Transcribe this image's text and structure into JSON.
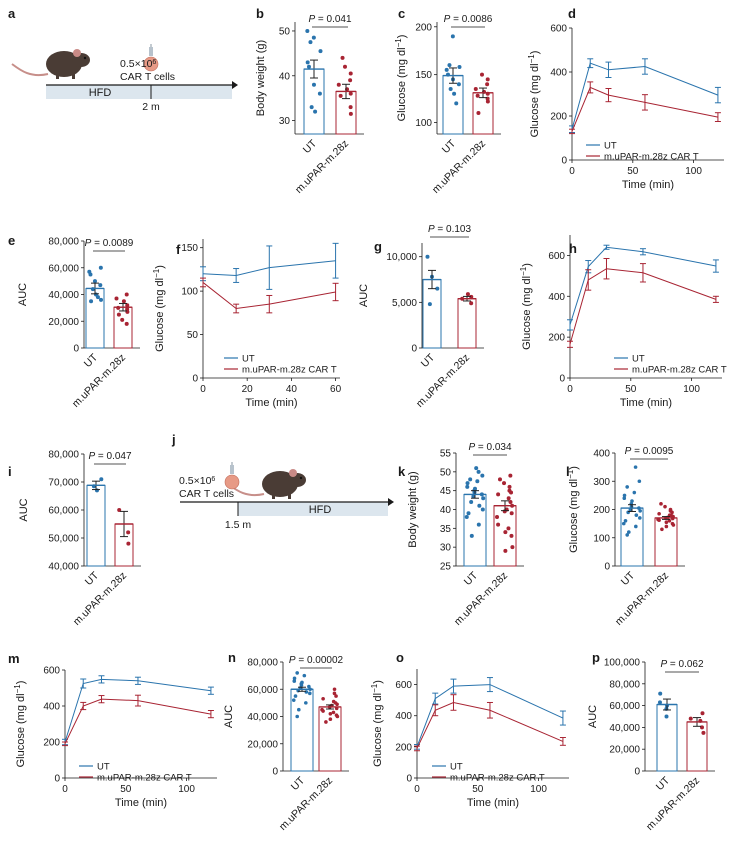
{
  "colors": {
    "ut": "#2a74ad",
    "car": "#a82433",
    "car_light": "#c9414f",
    "axis": "#1a1a1a",
    "hfd_bar": "#dce6ee",
    "mouse": "#4a3c35",
    "mouse_ear": "#c98a86",
    "cell": "#e79a86"
  },
  "chart_data": [
    {
      "panel": "a",
      "type": "schematic",
      "dose_label": "0.5×10",
      "dose_exponent": "6",
      "cells_label": "CAR T cells",
      "diet_label": "HFD",
      "time_label": "2 m"
    },
    {
      "panel": "b",
      "type": "bar",
      "categories": [
        "UT",
        "m.uPAR-m.28z"
      ],
      "values": [
        41.5,
        36.5
      ],
      "errors": [
        2.0,
        1.6
      ],
      "points": [
        [
          50,
          48.5,
          47.5,
          45.5,
          43,
          42,
          38,
          36,
          33,
          32
        ],
        [
          44,
          42,
          40.5,
          39,
          38,
          37,
          36,
          35.5,
          33,
          31.5
        ]
      ],
      "ylabel": "Body weight (g)",
      "ylim": [
        27,
        52
      ],
      "yticks": [
        "30",
        "40",
        "50"
      ],
      "yticks_values": [
        30,
        40,
        50
      ],
      "pvalue": "P = 0.041"
    },
    {
      "panel": "c",
      "type": "bar",
      "categories": [
        "UT",
        "m.uPAR-m.28z"
      ],
      "values": [
        149,
        131
      ],
      "errors": [
        8,
        5
      ],
      "points": [
        [
          190,
          160,
          158,
          155,
          150,
          145,
          140,
          135,
          130,
          120
        ],
        [
          150,
          145,
          140,
          135,
          132,
          130,
          128,
          125,
          122,
          110
        ]
      ],
      "ylabel": "Glucose (mg dl−1)",
      "ylim": [
        88,
        205
      ],
      "yticks": [
        "100",
        "150",
        "200"
      ],
      "yticks_values": [
        100,
        150,
        200
      ],
      "pvalue": "P = 0.0086"
    },
    {
      "panel": "d",
      "type": "line",
      "x": [
        0,
        15,
        30,
        60,
        120
      ],
      "series": [
        {
          "name": "UT",
          "values": [
            140,
            440,
            410,
            425,
            295
          ],
          "errors": [
            15,
            20,
            35,
            35,
            35
          ]
        },
        {
          "name": "m.uPAR-m.28z CAR T",
          "values": [
            130,
            330,
            295,
            262,
            195
          ],
          "errors": [
            10,
            25,
            30,
            35,
            20
          ]
        }
      ],
      "xlabel": "Time (min)",
      "ylabel": "Glucose (mg dl−1)",
      "xlim": [
        0,
        125
      ],
      "ylim": [
        0,
        600
      ],
      "xticks": [
        "0",
        "50",
        "100"
      ],
      "xticks_values": [
        0,
        50,
        100
      ],
      "yticks": [
        "0",
        "200",
        "400",
        "600"
      ],
      "yticks_values": [
        0,
        200,
        400,
        600
      ],
      "legend": "lower-left"
    },
    {
      "panel": "e",
      "type": "bar",
      "categories": [
        "UT",
        "m.uPAR-m.28z"
      ],
      "values": [
        44500,
        30500
      ],
      "errors": [
        4000,
        2800
      ],
      "points": [
        [
          60000,
          57000,
          55000,
          50000,
          47000,
          44000,
          40000,
          38000,
          36000,
          35000
        ],
        [
          40000,
          37000,
          35000,
          32000,
          30000,
          29000,
          27000,
          25000,
          21000,
          18000
        ]
      ],
      "ylabel": "AUC",
      "ylim": [
        0,
        80000
      ],
      "yticks": [
        "0",
        "20,000",
        "40,000",
        "60,000",
        "80,000"
      ],
      "yticks_values": [
        0,
        20000,
        40000,
        60000,
        80000
      ],
      "pvalue": "P = 0.0089"
    },
    {
      "panel": "f",
      "type": "line",
      "x": [
        0,
        15,
        30,
        60
      ],
      "series": [
        {
          "name": "UT",
          "values": [
            120,
            118,
            127,
            135
          ],
          "errors": [
            8,
            8,
            25,
            20
          ]
        },
        {
          "name": "m.uPAR-m.28z CAR T",
          "values": [
            110,
            80,
            85,
            99
          ],
          "errors": [
            5,
            5,
            10,
            10
          ]
        }
      ],
      "xlabel": "Time (min)",
      "ylabel": "Glucose (mg dl−1)",
      "xlim": [
        0,
        62
      ],
      "ylim": [
        0,
        160
      ],
      "xticks": [
        "0",
        "20",
        "40",
        "60"
      ],
      "xticks_values": [
        0,
        20,
        40,
        60
      ],
      "yticks": [
        "0",
        "50",
        "100",
        "150"
      ],
      "yticks_values": [
        0,
        50,
        100,
        150
      ],
      "legend": "lower-right"
    },
    {
      "panel": "g",
      "type": "bar",
      "categories": [
        "UT",
        "m.uPAR-m.28z"
      ],
      "values": [
        7500,
        5400
      ],
      "errors": [
        1000,
        250
      ],
      "points": [
        [
          10000,
          7800,
          6500,
          4800
        ],
        [
          5900,
          5600,
          5400,
          4900
        ]
      ],
      "ylabel": "AUC",
      "ylim": [
        0,
        11500
      ],
      "yticks": [
        "0",
        "5,000",
        "10,000"
      ],
      "yticks_values": [
        0,
        5000,
        10000
      ],
      "pvalue": "P = 0.103"
    },
    {
      "panel": "h",
      "type": "line",
      "x": [
        0,
        15,
        30,
        60,
        120
      ],
      "series": [
        {
          "name": "UT",
          "values": [
            260,
            545,
            640,
            618,
            548
          ],
          "errors": [
            25,
            30,
            10,
            15,
            30
          ]
        },
        {
          "name": "m.uPAR-m.28z CAR T",
          "values": [
            165,
            480,
            535,
            515,
            385
          ],
          "errors": [
            15,
            50,
            50,
            45,
            15
          ]
        }
      ],
      "xlabel": "Time (min)",
      "ylabel": "Glucose (mg dl−1)",
      "xlim": [
        0,
        125
      ],
      "ylim": [
        0,
        700
      ],
      "xticks": [
        "0",
        "50",
        "100"
      ],
      "xticks_values": [
        0,
        50,
        100
      ],
      "yticks": [
        "0",
        "200",
        "400",
        "600"
      ],
      "yticks_values": [
        0,
        200,
        400,
        600
      ],
      "legend": "lower-right"
    },
    {
      "panel": "i",
      "type": "bar",
      "categories": [
        "UT",
        "m.uPAR-m.28z"
      ],
      "values": [
        68800,
        55000
      ],
      "errors": [
        1500,
        4500
      ],
      "points": [
        [
          71000,
          68500,
          67000
        ],
        [
          60000,
          52000,
          48000
        ]
      ],
      "ylabel": "AUC",
      "ylim": [
        40000,
        80000
      ],
      "yticks": [
        "40,000",
        "50,000",
        "60,000",
        "70,000",
        "80,000"
      ],
      "yticks_values": [
        40000,
        50000,
        60000,
        70000,
        80000
      ],
      "pvalue": "P = 0.047"
    },
    {
      "panel": "j",
      "type": "schematic",
      "dose_label": "0.5×10",
      "dose_exponent": "6",
      "cells_label": "CAR T cells",
      "diet_label": "HFD",
      "time_label": "1.5 m"
    },
    {
      "panel": "k",
      "type": "bar",
      "categories": [
        "UT",
        "m.uPAR-m.28z"
      ],
      "values": [
        44,
        41
      ],
      "errors": [
        1.0,
        1.3
      ],
      "points": [
        [
          51,
          50,
          49,
          48,
          47.5,
          47,
          46,
          45.5,
          45,
          44.5,
          44,
          43.5,
          43,
          42,
          41,
          40,
          39,
          38,
          36,
          33
        ],
        [
          49,
          48,
          47,
          46,
          45,
          44.5,
          44,
          43,
          42,
          41,
          40,
          39.5,
          39,
          38,
          36,
          35,
          34,
          33,
          30,
          29
        ]
      ],
      "ylabel": "Body weight (g)",
      "ylim": [
        25,
        55
      ],
      "yticks": [
        "25",
        "30",
        "35",
        "40",
        "45",
        "50",
        "55"
      ],
      "yticks_values": [
        25,
        30,
        35,
        40,
        45,
        50,
        55
      ],
      "pvalue": "P = 0.034"
    },
    {
      "panel": "l",
      "type": "bar",
      "categories": [
        "UT",
        "m.uPAR-m.28z"
      ],
      "values": [
        205,
        170
      ],
      "errors": [
        12,
        5
      ],
      "points": [
        [
          350,
          300,
          280,
          260,
          250,
          240,
          230,
          220,
          210,
          205,
          200,
          195,
          190,
          180,
          170,
          160,
          150,
          140,
          120,
          110
        ],
        [
          220,
          210,
          200,
          195,
          190,
          185,
          180,
          178,
          175,
          172,
          170,
          168,
          165,
          162,
          160,
          155,
          150,
          145,
          140,
          130
        ]
      ],
      "ylabel": "Glucose (mg dl−1)",
      "ylim": [
        0,
        400
      ],
      "yticks": [
        "0",
        "100",
        "200",
        "300",
        "400"
      ],
      "yticks_values": [
        0,
        100,
        200,
        300,
        400
      ],
      "pvalue": "P = 0.0095"
    },
    {
      "panel": "m",
      "type": "line",
      "x": [
        0,
        15,
        30,
        60,
        120
      ],
      "series": [
        {
          "name": "UT",
          "values": [
            200,
            525,
            548,
            540,
            485
          ],
          "errors": [
            15,
            25,
            20,
            20,
            20
          ]
        },
        {
          "name": "m.uPAR-m.28z CAR T",
          "values": [
            190,
            400,
            438,
            430,
            355
          ],
          "errors": [
            10,
            20,
            20,
            30,
            20
          ]
        }
      ],
      "xlabel": "Time (min)",
      "ylabel": "Glucose (mg dl−1)",
      "xlim": [
        0,
        125
      ],
      "ylim": [
        0,
        600
      ],
      "xticks": [
        "0",
        "50",
        "100"
      ],
      "xticks_values": [
        0,
        50,
        100
      ],
      "yticks": [
        "0",
        "200",
        "400",
        "600"
      ],
      "yticks_values": [
        0,
        200,
        400,
        600
      ],
      "legend": "lower-left"
    },
    {
      "panel": "n",
      "type": "bar",
      "categories": [
        "UT",
        "m.uPAR-m.28z"
      ],
      "values": [
        60000,
        47000
      ],
      "errors": [
        1500,
        1500
      ],
      "points": [
        [
          72000,
          70000,
          68000,
          66000,
          65000,
          64000,
          63000,
          62000,
          61000,
          60000,
          59000,
          58000,
          57000,
          55000,
          52000,
          50000,
          45000,
          40000
        ],
        [
          60000,
          57000,
          55000,
          53000,
          51000,
          50000,
          49000,
          48000,
          47000,
          46000,
          45000,
          44000,
          43000,
          42000,
          41000,
          40000,
          38000,
          36000
        ]
      ],
      "ylabel": "AUC",
      "ylim": [
        0,
        80000
      ],
      "yticks": [
        "0",
        "20,000",
        "40,000",
        "60,000",
        "80,000"
      ],
      "yticks_values": [
        0,
        20000,
        40000,
        60000,
        80000
      ],
      "pvalue": "P = 0.00002"
    },
    {
      "panel": "o",
      "type": "line",
      "x": [
        0,
        15,
        30,
        60,
        120
      ],
      "series": [
        {
          "name": "UT",
          "values": [
            200,
            510,
            590,
            600,
            385
          ],
          "errors": [
            15,
            35,
            45,
            45,
            45
          ]
        },
        {
          "name": "m.uPAR-m.28z CAR T",
          "values": [
            190,
            435,
            485,
            435,
            235
          ],
          "errors": [
            15,
            35,
            50,
            50,
            25
          ]
        }
      ],
      "xlabel": "Time (min)",
      "ylabel": "Glucose (mg dl−1)",
      "xlim": [
        0,
        125
      ],
      "ylim": [
        0,
        700
      ],
      "xticks": [
        "0",
        "50",
        "100"
      ],
      "xticks_values": [
        0,
        50,
        100
      ],
      "yticks": [
        "0",
        "200",
        "400",
        "600"
      ],
      "yticks_values": [
        0,
        200,
        400,
        600
      ],
      "legend": "lower-right"
    },
    {
      "panel": "p",
      "type": "bar",
      "categories": [
        "UT",
        "m.uPAR-m.28z"
      ],
      "values": [
        61000,
        45000
      ],
      "errors": [
        5000,
        4000
      ],
      "points": [
        [
          71000,
          63000,
          60000,
          57000,
          50000
        ],
        [
          53000,
          48000,
          46000,
          40000,
          35000
        ]
      ],
      "ylabel": "AUC",
      "ylim": [
        0,
        100000
      ],
      "yticks": [
        "0",
        "20,000",
        "40,000",
        "60,000",
        "80,000",
        "100,000"
      ],
      "yticks_values": [
        0,
        20000,
        40000,
        60000,
        80000,
        100000
      ],
      "pvalue": "P = 0.062"
    }
  ]
}
